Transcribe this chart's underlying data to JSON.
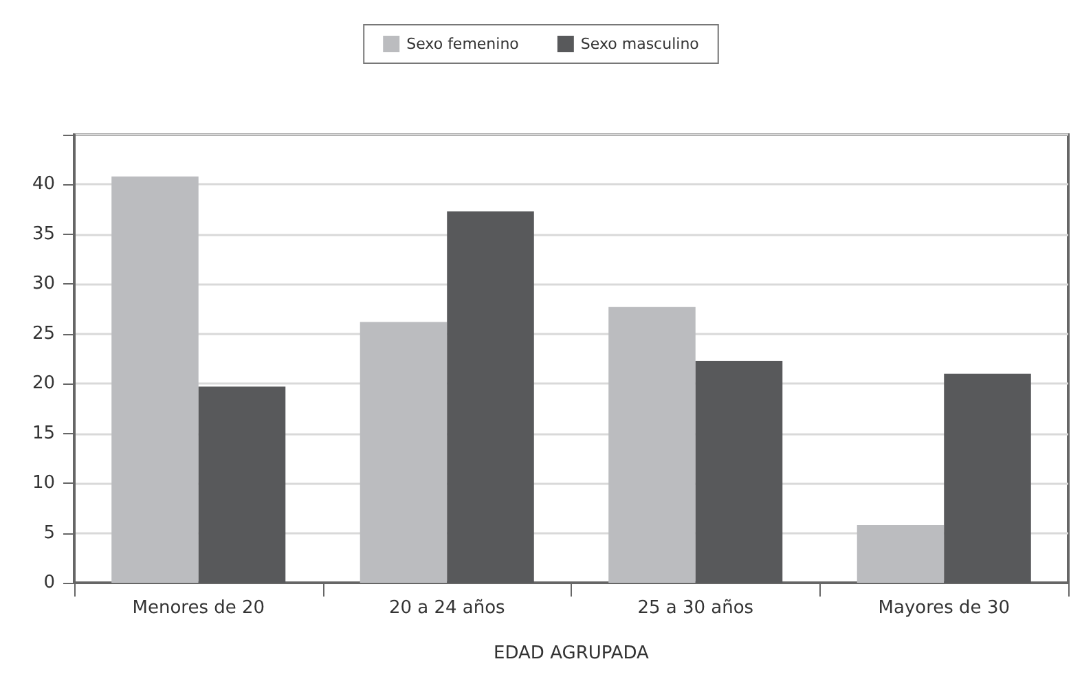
{
  "chart_data": {
    "type": "bar",
    "xlabel": "EDAD AGRUPADA",
    "categories": [
      "Menores de 20",
      "20 a 24 años",
      "25 a 30 años",
      "Mayores de 30"
    ],
    "series": [
      {
        "name": "Sexo femenino",
        "color": "#bbbcbf",
        "values": [
          40.8,
          26.2,
          27.7,
          5.8
        ]
      },
      {
        "name": "Sexo masculino",
        "color": "#58595b",
        "values": [
          19.7,
          37.3,
          22.3,
          21.0
        ]
      }
    ],
    "ylim": [
      0,
      45
    ],
    "yticks": [
      0,
      5,
      10,
      15,
      20,
      25,
      30,
      35,
      40,
      {
        "value": 45,
        "label": null
      }
    ],
    "grid": "y",
    "legend": "top"
  }
}
